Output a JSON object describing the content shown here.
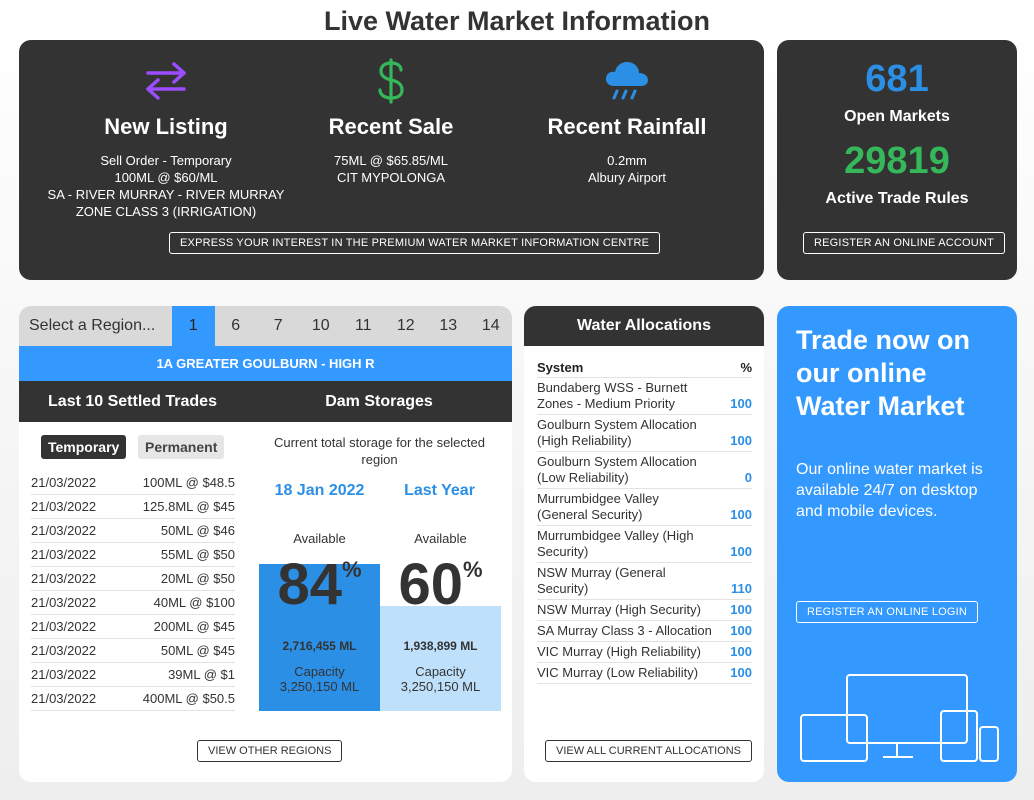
{
  "page_title": "Live Water Market Information",
  "stats": {
    "new_listing": {
      "title": "New Listing",
      "lines": [
        "Sell Order - Temporary",
        "100ML @ $60/ML",
        "SA - RIVER MURRAY - RIVER MURRAY",
        "ZONE CLASS 3 (IRRIGATION)"
      ],
      "icon": "arrows-swap-icon"
    },
    "recent_sale": {
      "title": "Recent Sale",
      "lines": [
        "75ML @ $65.85/ML",
        "CIT MYPOLONGA"
      ],
      "icon": "dollar-icon"
    },
    "recent_rainfall": {
      "title": "Recent Rainfall",
      "lines": [
        "0.2mm",
        "Albury Airport"
      ],
      "icon": "rain-cloud-icon"
    },
    "interest_button": "EXPRESS YOUR INTEREST IN THE PREMIUM WATER MARKET INFORMATION CENTRE"
  },
  "counts": {
    "open_markets_value": "681",
    "open_markets_label": "Open Markets",
    "trade_rules_value": "29819",
    "trade_rules_label": "Active Trade Rules",
    "register_button": "REGISTER AN ONLINE ACCOUNT"
  },
  "regions": {
    "select_label": "Select a Region...",
    "tabs": [
      "1",
      "6",
      "7",
      "10",
      "11",
      "12",
      "13",
      "14"
    ],
    "active_tab": "1",
    "region_name": "1A GREATER GOULBURN - HIGH R",
    "trades_heading": "Last 10 Settled Trades",
    "dams_heading": "Dam Storages",
    "temporary_label": "Temporary",
    "permanent_label": "Permanent",
    "trades": [
      {
        "date": "21/03/2022",
        "detail": "100ML @ $48.5"
      },
      {
        "date": "21/03/2022",
        "detail": "125.8ML @ $45"
      },
      {
        "date": "21/03/2022",
        "detail": "50ML @ $46"
      },
      {
        "date": "21/03/2022",
        "detail": "55ML @ $50"
      },
      {
        "date": "21/03/2022",
        "detail": "20ML @ $50"
      },
      {
        "date": "21/03/2022",
        "detail": "40ML @ $100"
      },
      {
        "date": "21/03/2022",
        "detail": "200ML @ $45"
      },
      {
        "date": "21/03/2022",
        "detail": "50ML @ $45"
      },
      {
        "date": "21/03/2022",
        "detail": "39ML @ $1"
      },
      {
        "date": "21/03/2022",
        "detail": "400ML @ $50.5"
      }
    ],
    "storage_caption": "Current total storage for the selected region",
    "storage": {
      "current": {
        "label": "18 Jan 2022",
        "available_label": "Available",
        "percent": "84",
        "percent_value": 84,
        "amount": "2,716,455 ML",
        "capacity_label": "Capacity",
        "capacity": "3,250,150 ML",
        "color": "#2b8fe6"
      },
      "last_year": {
        "label": "Last Year",
        "available_label": "Available",
        "percent": "60",
        "percent_value": 60,
        "amount": "1,938,899 ML",
        "capacity_label": "Capacity",
        "capacity": "3,250,150 ML",
        "color": "#bfe0fb"
      }
    },
    "percent_symbol": "%",
    "view_regions_button": "VIEW OTHER REGIONS"
  },
  "allocations": {
    "heading": "Water Allocations",
    "col_system": "System",
    "col_percent": "%",
    "rows": [
      {
        "system": "Bundaberg WSS - Burnett Zones - Medium Priority",
        "percent": "100"
      },
      {
        "system": "Goulburn System Allocation (High Reliability)",
        "percent": "100"
      },
      {
        "system": "Goulburn System Allocation (Low Reliability)",
        "percent": "0"
      },
      {
        "system": "Murrumbidgee Valley (General Security)",
        "percent": "100"
      },
      {
        "system": "Murrumbidgee Valley (High Security)",
        "percent": "100"
      },
      {
        "system": "NSW Murray (General Security)",
        "percent": "110"
      },
      {
        "system": "NSW Murray (High Security)",
        "percent": "100"
      },
      {
        "system": "SA Murray Class 3 - Allocation",
        "percent": "100"
      },
      {
        "system": "VIC Murray (High Reliability)",
        "percent": "100"
      },
      {
        "system": "VIC Murray (Low Reliability)",
        "percent": "100"
      }
    ],
    "view_button": "VIEW ALL CURRENT ALLOCATIONS"
  },
  "promo": {
    "title": "Trade now on our online Water Market",
    "text": "Our online water market is available 24/7 on desktop and mobile devices.",
    "button": "REGISTER AN ONLINE LOGIN",
    "illustration": "devices-icon"
  },
  "colors": {
    "dark": "#333333",
    "accent_blue": "#3399ff",
    "value_blue": "#2b8fe6",
    "green": "#34b85a",
    "purple": "#9b4dff"
  }
}
